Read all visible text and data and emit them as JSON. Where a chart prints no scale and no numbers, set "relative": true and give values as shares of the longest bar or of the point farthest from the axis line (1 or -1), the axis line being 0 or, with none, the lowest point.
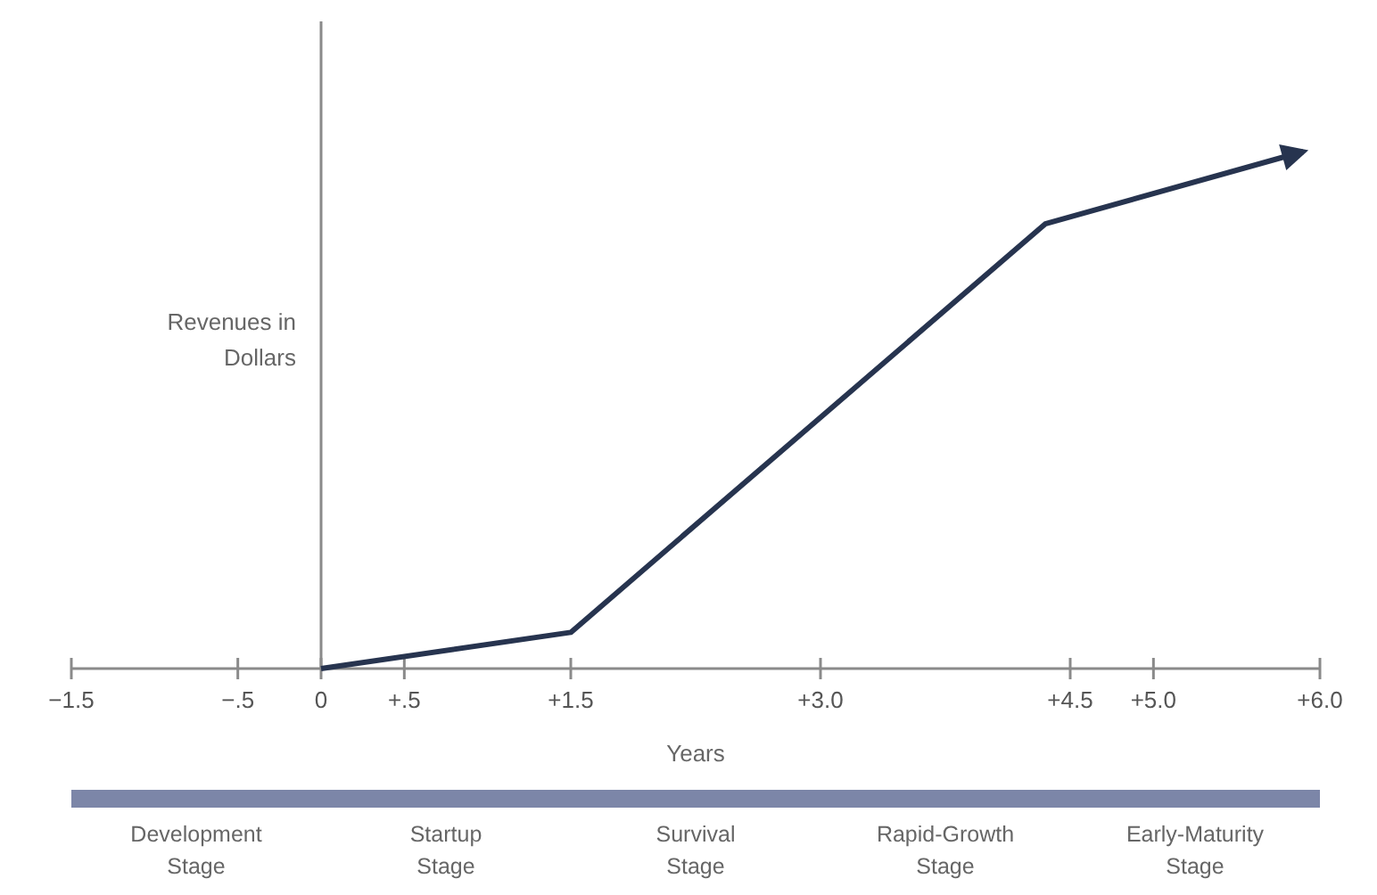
{
  "chart_data": {
    "type": "line",
    "relative": true,
    "ylabel": "Revenues in Dollars",
    "xlabel": "Years",
    "x": [
      0,
      1.5,
      4.35,
      5.9
    ],
    "series": [
      {
        "color": "#27344f",
        "values": [
          0,
          0.07,
          0.86,
          1
        ]
      }
    ],
    "xlim": [
      -1.5,
      6.0
    ],
    "xticks": [
      {
        "value": -1.5,
        "label": "−1.5"
      },
      {
        "value": -0.5,
        "label": "−.5"
      },
      0,
      {
        "value": 0.5,
        "label": "+.5"
      },
      {
        "value": 1.5,
        "label": "+1.5"
      },
      {
        "value": 3.0,
        "label": "+3.0"
      },
      {
        "value": 4.5,
        "label": "+4.5"
      },
      {
        "value": 5.0,
        "label": "+5.0"
      },
      {
        "value": 6.0,
        "label": "+6.0"
      }
    ],
    "annotations": [
      "Development Stage",
      "Startup Stage",
      "Survival Stage",
      "Rapid-Growth Stage",
      "Early-Maturity Stage"
    ],
    "marker": "none",
    "line_style": "solid"
  }
}
